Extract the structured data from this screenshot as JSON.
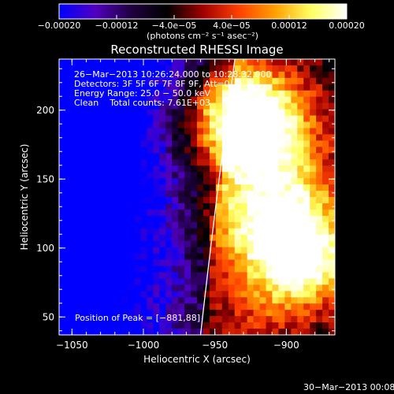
{
  "chart_data": {
    "type": "heatmap",
    "title": "Reconstructed RHESSI Image",
    "xlabel": "Heliocentric X (arcsec)",
    "ylabel": "Heliocentric Y (arcsec)",
    "xlim": [
      -1059,
      -866
    ],
    "ylim": [
      37,
      237
    ],
    "x_ticks": [
      "−1050",
      "−1000",
      "−950",
      "−900"
    ],
    "x_tick_values": [
      -1050,
      -1000,
      -950,
      -900
    ],
    "y_ticks": [
      "50",
      "100",
      "150",
      "200"
    ],
    "y_tick_values": [
      50,
      100,
      150,
      200
    ],
    "colorbar": {
      "range": [
        -0.0002,
        0.0002
      ],
      "ticks": [
        "−0.00020",
        "−0.00012",
        "−4.0e−05",
        "4.0e−05",
        "0.00012",
        "0.00020"
      ],
      "tick_values": [
        -0.0002,
        -0.00012,
        -4e-05,
        4e-05,
        0.00012,
        0.0002
      ],
      "unit_label": "(photons cm⁻² s⁻¹ asec⁻²)",
      "colors": [
        "#0000ff",
        "#5000c0",
        "#200040",
        "#000000",
        "#a00000",
        "#ff4000",
        "#ffa000",
        "#ffff60",
        "#ffffff"
      ]
    },
    "info_lines": [
      "26−Mar−2013 10:26:24.000 to 10:28:32.000",
      "Detectors: 3F 5F 6F 7F 8F 9F, Att=0",
      "Energy Range: 25.0 − 50.0 keV",
      "Clean    Total counts: 7.61E+03"
    ],
    "peak_text": "Position of Peak = [−881,88]",
    "peak": [
      -881,
      88
    ],
    "limb_points": [
      [
        -960,
        37
      ],
      [
        -950,
        130
      ],
      [
        -936,
        237
      ]
    ],
    "sources": [
      {
        "x": -938,
        "y": 205,
        "level": 1.0
      },
      {
        "x": -905,
        "y": 195,
        "level": 0.6
      },
      {
        "x": -925,
        "y": 170,
        "level": 0.85
      },
      {
        "x": -885,
        "y": 90,
        "level": 1.0
      },
      {
        "x": -905,
        "y": 110,
        "level": 0.7
      },
      {
        "x": -935,
        "y": 120,
        "level": 0.5
      },
      {
        "x": -890,
        "y": 140,
        "level": 0.55
      },
      {
        "x": -960,
        "y": 180,
        "level": 0.3
      },
      {
        "x": -920,
        "y": 60,
        "level": 0.35
      }
    ]
  },
  "footer": {
    "date": "30−Mar−2013 00:08"
  }
}
